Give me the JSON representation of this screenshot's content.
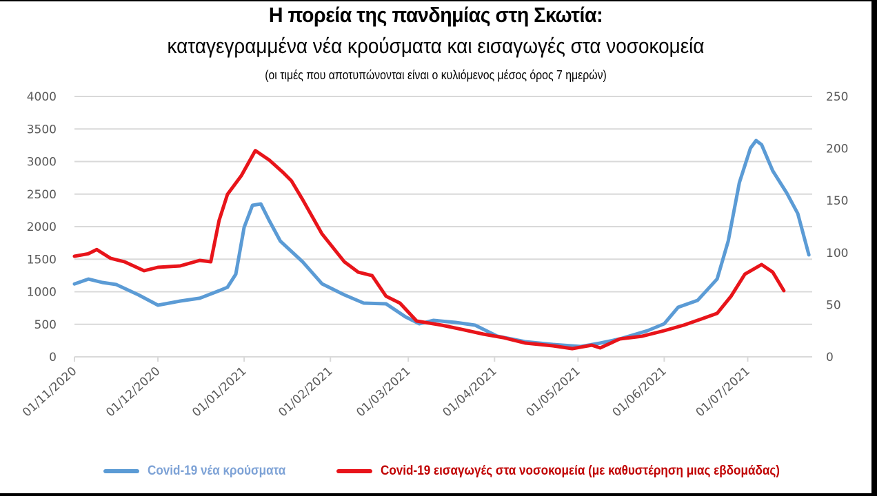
{
  "header": {
    "title": "Η πορεία της πανδημίας στη Σκωτία:",
    "subtitle": "καταγεγραμμένα νέα κρούσματα και εισαγωγές στα νοσοκομεία",
    "note": "(οι τιμές που αποτυπώνονται είναι ο κυλιόμενος μέσος όρος 7 ημερών)"
  },
  "legend": {
    "cases_label": "Covid-19 νέα κρούσματα",
    "admissions_label": "Covid-19 εισαγωγές στα νοσοκομεία (με καθυστέρηση μιας εβδομάδας)"
  },
  "colors": {
    "cases": "#5b9bd5",
    "admissions": "#e8141a",
    "cases_legend_text": "#7da2d6",
    "admissions_legend_text": "#c00000",
    "grid": "#d9d9d9",
    "tick_text": "#595959"
  },
  "chart_data": {
    "type": "line",
    "title": "Η πορεία της πανδημίας στη Σκωτία: καταγεγραμμένα νέα κρούσματα και εισαγωγές στα νοσοκομεία",
    "subtitle": "(οι τιμές που αποτυπώνονται είναι ο κυλιόμενος μέσος όρος 7 ημερών)",
    "xlabel": "",
    "ylabel_left": "",
    "ylabel_right": "",
    "x_ticks": [
      "01/11/2020",
      "01/12/2020",
      "01/01/2021",
      "01/02/2021",
      "01/03/2021",
      "01/04/2021",
      "01/05/2021",
      "01/06/2021",
      "01/07/2021"
    ],
    "x_tick_day_offsets": [
      0,
      30,
      61,
      92,
      120,
      151,
      181,
      212,
      242
    ],
    "x_range_days": [
      0,
      265
    ],
    "y_left": {
      "ticks": [
        0,
        500,
        1000,
        1500,
        2000,
        2500,
        3000,
        3500,
        4000
      ],
      "ylim": [
        0,
        4000
      ]
    },
    "y_right": {
      "ticks": [
        0,
        50,
        100,
        150,
        200,
        250
      ],
      "ylim": [
        0,
        250
      ]
    },
    "grid": true,
    "legend_position": "bottom",
    "series": [
      {
        "name": "Covid-19 νέα κρούσματα",
        "axis": "left",
        "color": "#5b9bd5",
        "day_offsets": [
          0,
          5,
          10,
          15,
          23,
          30,
          38,
          45,
          52,
          55,
          58,
          61,
          64,
          67,
          70,
          74,
          82,
          89,
          97,
          104,
          112,
          119,
          124,
          129,
          137,
          144,
          152,
          162,
          172,
          182,
          189,
          196,
          206,
          212,
          217,
          224,
          231,
          235,
          239,
          243,
          245,
          247,
          251,
          256,
          260,
          264
        ],
        "values": [
          1120,
          1195,
          1143,
          1111,
          952,
          794,
          857,
          900,
          1016,
          1069,
          1270,
          1989,
          2328,
          2349,
          2095,
          1778,
          1460,
          1122,
          952,
          825,
          815,
          614,
          508,
          561,
          529,
          487,
          317,
          233,
          190,
          159,
          212,
          275,
          402,
          508,
          762,
          868,
          1196,
          1778,
          2677,
          3206,
          3323,
          3259,
          2857,
          2519,
          2201,
          1566
        ]
      },
      {
        "name": "Covid-19 εισαγωγές στα νοσοκομεία (με καθυστέρηση μιας εβδομάδας)",
        "axis": "right",
        "color": "#e8141a",
        "day_offsets": [
          0,
          5,
          8,
          13,
          18,
          25,
          30,
          38,
          45,
          49,
          52,
          55,
          60,
          65,
          70,
          75,
          78,
          82,
          89,
          97,
          102,
          107,
          112,
          117,
          123,
          132,
          139,
          147,
          154,
          162,
          172,
          179,
          186,
          189,
          196,
          204,
          212,
          219,
          226,
          231,
          236,
          241,
          247,
          251,
          255
        ],
        "values": [
          96.6,
          99,
          103,
          94.6,
          91.3,
          82.7,
          86,
          87.3,
          92.6,
          91.3,
          131,
          156,
          174,
          198,
          189,
          177,
          169,
          151,
          118,
          91.3,
          81.3,
          78,
          58.2,
          51.6,
          34.4,
          30.4,
          26.5,
          21.8,
          18.5,
          13.2,
          10.6,
          7.9,
          11.2,
          8.6,
          17.2,
          19.8,
          25.1,
          30.4,
          37,
          41.7,
          58.2,
          79.4,
          88.6,
          81.3,
          63.5
        ]
      }
    ]
  }
}
